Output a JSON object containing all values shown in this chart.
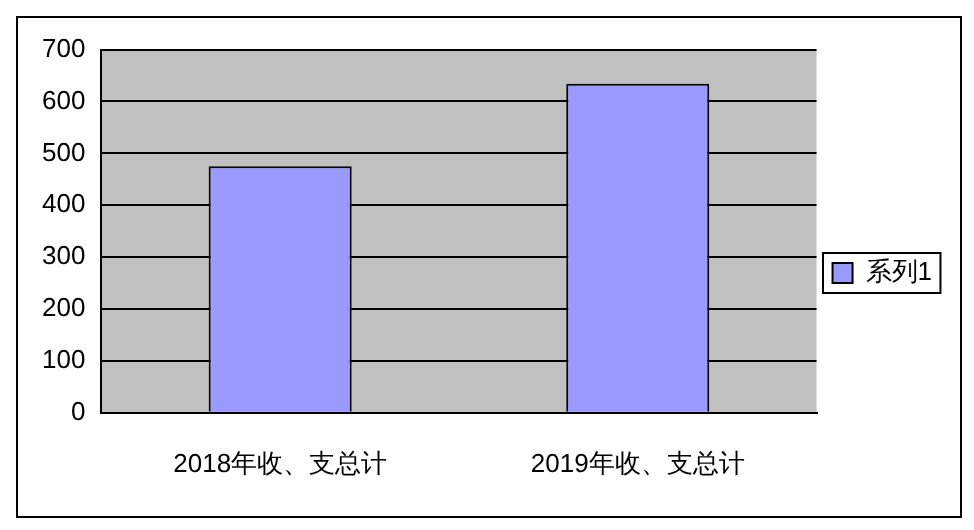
{
  "chart_data": {
    "type": "bar",
    "categories": [
      "2018年收、支总计",
      "2019年收、支总计"
    ],
    "series": [
      {
        "name": "系列1",
        "color": "#9999ff",
        "values": [
          475,
          634
        ]
      }
    ],
    "ylim": [
      0,
      700
    ],
    "yticks": [
      0,
      100,
      200,
      300,
      400,
      500,
      600,
      700
    ],
    "grid": "y",
    "legend": "right"
  }
}
